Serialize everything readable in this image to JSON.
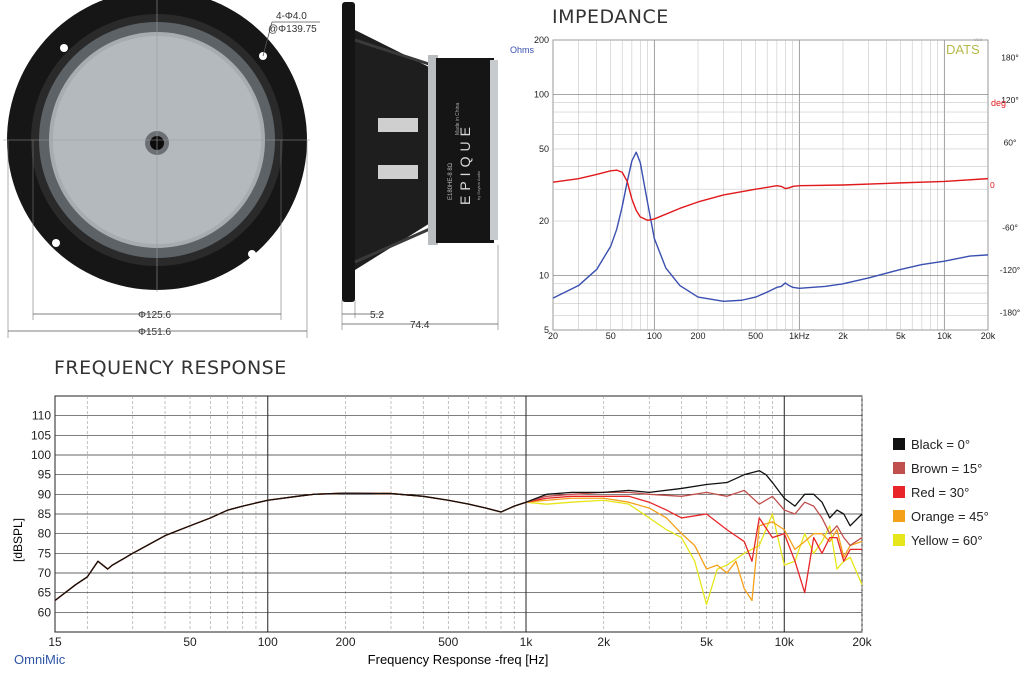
{
  "drawing": {
    "dim_holes": "4-Φ4.0",
    "dim_holes_pcd": "@Φ139.75",
    "dim_cutout": "Φ125.6",
    "dim_outer": "Φ151.6",
    "dim_flange": "5.2",
    "dim_depth": "74.4",
    "brand": "EPIQUE",
    "brand_sub": "by Dayton Audio",
    "model": "E180HE-8 8Ω",
    "made_in": "Made in China"
  },
  "impedance": {
    "title": "IMPEDANCE",
    "y_unit_label": "Ohms",
    "phase_unit_label": "deg",
    "watermark": "DATS",
    "watermark_version": "V3.0",
    "colors": {
      "impedance": "#3a4fb0",
      "phase": "#e0191c",
      "watermark": "#b6b84a",
      "phase_label": "#e0191c",
      "ohms_label": "#3a4fb0"
    }
  },
  "frequency_response": {
    "title": "FREQUENCY RESPONSE",
    "xlabel": "Frequency Response -freq [Hz]",
    "ylabel": "[dBSPL]",
    "watermark": "OmniMic",
    "legend": [
      {
        "label": "Black = 0°",
        "color": "#111111"
      },
      {
        "label": "Brown = 15°",
        "color": "#c0504d"
      },
      {
        "label": "Red = 30°",
        "color": "#e8262a"
      },
      {
        "label": "Orange = 45°",
        "color": "#f5a01a"
      },
      {
        "label": "Yellow = 60°",
        "color": "#e6e61a"
      }
    ],
    "colors": {
      "watermark": "#2e55a6"
    }
  },
  "chart_data": [
    {
      "type": "line",
      "title": "IMPEDANCE",
      "xscale": "log",
      "yscale": "log",
      "xlim": [
        20,
        20000
      ],
      "ylim": [
        5,
        200
      ],
      "x_ticks": [
        20,
        50,
        100,
        200,
        500,
        1000,
        2000,
        5000,
        10000,
        20000
      ],
      "x_tick_labels": [
        "20",
        "50",
        "100",
        "200",
        "500",
        "1kHz",
        "2k",
        "5k",
        "10k",
        "20k"
      ],
      "y_ticks": [
        5,
        10,
        20,
        50,
        100,
        200
      ],
      "y_tick_labels": [
        "5",
        "10",
        "20",
        "50",
        "100",
        "200"
      ],
      "y_label": "Ohms",
      "y2_ticks": [
        180,
        120,
        60,
        0,
        -60,
        -120,
        -180
      ],
      "y2_tick_labels": [
        "180°",
        "120°",
        "60°",
        "0 deg",
        "-60°",
        "-120°",
        "-180°"
      ],
      "grid": true,
      "series": [
        {
          "axis": "left",
          "x": [
            20,
            30,
            40,
            50,
            55,
            60,
            65,
            70,
            75,
            80,
            90,
            100,
            120,
            150,
            200,
            300,
            400,
            500,
            600,
            700,
            750,
            800,
            850,
            900,
            1000,
            1500,
            2000,
            3000,
            5000,
            7000,
            10000,
            15000,
            20000
          ],
          "values": [
            7.5,
            8.8,
            10.8,
            14.5,
            18,
            24,
            33,
            43,
            48,
            42,
            25,
            16,
            11,
            8.8,
            7.6,
            7.2,
            7.3,
            7.6,
            8.1,
            8.6,
            8.7,
            9.1,
            8.8,
            8.6,
            8.5,
            8.7,
            9.0,
            9.7,
            10.8,
            11.5,
            12.0,
            12.8,
            13.0
          ]
        },
        {
          "axis": "right",
          "x": [
            20,
            30,
            40,
            50,
            55,
            60,
            65,
            70,
            75,
            80,
            90,
            100,
            150,
            200,
            300,
            500,
            700,
            750,
            800,
            850,
            900,
            1000,
            2000,
            5000,
            10000,
            20000
          ],
          "values": [
            4,
            9,
            15,
            20,
            21,
            18,
            5,
            -20,
            -36,
            -45,
            -50,
            -48,
            -33,
            -24,
            -14,
            -6,
            -1,
            -2,
            -5,
            -4,
            -2,
            -1,
            0,
            3,
            5,
            9
          ]
        }
      ]
    },
    {
      "type": "line",
      "title": "FREQUENCY RESPONSE",
      "xlabel": "Frequency Response -freq [Hz]",
      "ylabel": "[dBSPL]",
      "xscale": "log",
      "xlim": [
        15,
        20000
      ],
      "ylim": [
        55,
        115
      ],
      "x_ticks": [
        15,
        50,
        100,
        200,
        500,
        1000,
        2000,
        5000,
        10000,
        20000
      ],
      "x_tick_labels": [
        "15",
        "50",
        "100",
        "200",
        "500",
        "1k",
        "2k",
        "5k",
        "10k",
        "20k"
      ],
      "y_ticks": [
        60,
        65,
        70,
        75,
        80,
        85,
        90,
        95,
        100,
        105,
        110
      ],
      "y_tick_labels": [
        "60",
        "65",
        "70",
        "75",
        "80",
        "85",
        "90",
        "95",
        "100",
        "105",
        "110"
      ],
      "grid": true,
      "legend_position": "right",
      "series": [
        {
          "name": "Black = 0°",
          "x": [
            15,
            18,
            20,
            22,
            24,
            25,
            30,
            40,
            50,
            60,
            70,
            80,
            100,
            130,
            150,
            200,
            300,
            400,
            500,
            600,
            700,
            800,
            900,
            1000,
            1200,
            1500,
            2000,
            2500,
            3000,
            4000,
            5000,
            6000,
            7000,
            8000,
            8500,
            9000,
            10000,
            11000,
            12000,
            13000,
            14000,
            15000,
            16000,
            17000,
            18000,
            20000
          ],
          "values": [
            63,
            67,
            69,
            73,
            71,
            72,
            75,
            79.5,
            82,
            84,
            86,
            87,
            88.5,
            89.5,
            90,
            90.3,
            90.2,
            89.5,
            88.5,
            87.5,
            86.5,
            85.5,
            87,
            88,
            90,
            90.5,
            90.5,
            91,
            90.5,
            91.5,
            92.5,
            93,
            95,
            96,
            95,
            93,
            89,
            87,
            90,
            90,
            88,
            84,
            86,
            85,
            82,
            85
          ]
        },
        {
          "name": "Brown = 15°",
          "x": [
            15,
            18,
            20,
            22,
            24,
            25,
            30,
            40,
            50,
            60,
            70,
            80,
            100,
            130,
            150,
            200,
            300,
            400,
            500,
            600,
            700,
            800,
            900,
            1000,
            1200,
            1500,
            2000,
            2500,
            3000,
            4000,
            5000,
            6000,
            7000,
            8000,
            9000,
            10000,
            11000,
            12000,
            13000,
            14000,
            15000,
            16000,
            17000,
            18000,
            20000
          ],
          "values": [
            63,
            67,
            69,
            73,
            71,
            72,
            75,
            79.5,
            82,
            84,
            86,
            87,
            88.5,
            89.5,
            90,
            90.3,
            90.2,
            89.5,
            88.5,
            87.5,
            86.5,
            85.5,
            87,
            88,
            89.5,
            90,
            90.5,
            90.5,
            90,
            89.5,
            90.5,
            89.5,
            91,
            87.5,
            89.5,
            86,
            85,
            88,
            87,
            84,
            80,
            82,
            79,
            77,
            79
          ]
        },
        {
          "name": "Red = 30°",
          "x": [
            15,
            18,
            20,
            22,
            24,
            25,
            30,
            40,
            50,
            60,
            70,
            80,
            100,
            130,
            150,
            200,
            300,
            400,
            500,
            600,
            700,
            800,
            900,
            1000,
            1200,
            1500,
            2000,
            2500,
            3000,
            3500,
            4000,
            5000,
            6000,
            7000,
            7500,
            8000,
            9000,
            10000,
            11000,
            12000,
            13000,
            14000,
            15000,
            16000,
            17000,
            18000,
            20000
          ],
          "values": [
            63,
            67,
            69,
            73,
            71,
            72,
            75,
            79.5,
            82,
            84,
            86,
            87,
            88.5,
            89.5,
            90,
            90.3,
            90.2,
            89.5,
            88.5,
            87.5,
            86.5,
            85.5,
            87,
            88,
            89,
            89.5,
            89.5,
            89.5,
            88,
            86,
            84,
            85,
            81,
            78,
            73,
            84,
            79,
            80,
            73,
            65,
            79,
            75,
            79,
            79,
            73,
            76,
            76
          ]
        },
        {
          "name": "Orange = 45°",
          "x": [
            15,
            18,
            20,
            22,
            24,
            25,
            30,
            40,
            50,
            60,
            70,
            80,
            100,
            130,
            150,
            200,
            300,
            400,
            500,
            600,
            700,
            800,
            900,
            1000,
            1200,
            1500,
            2000,
            2500,
            3000,
            3500,
            4000,
            4500,
            5000,
            5500,
            6000,
            6500,
            7000,
            7500,
            8000,
            9000,
            10000,
            11000,
            12000,
            13000,
            14000,
            15000,
            16000,
            17000,
            18000,
            20000
          ],
          "values": [
            63,
            67,
            69,
            73,
            71,
            72,
            75,
            79.5,
            82,
            84,
            86,
            87,
            88.5,
            89.5,
            90,
            90.3,
            90.2,
            89.5,
            88.5,
            87.5,
            86.5,
            85.5,
            87,
            88,
            88.5,
            89,
            89,
            88,
            86.5,
            84,
            80,
            77,
            71,
            72,
            70,
            73,
            66,
            63,
            82,
            83,
            81,
            76,
            78,
            80,
            80,
            78,
            81,
            74,
            77,
            78
          ]
        },
        {
          "name": "Yellow = 60°",
          "x": [
            15,
            18,
            20,
            22,
            24,
            25,
            30,
            40,
            50,
            60,
            70,
            80,
            100,
            130,
            150,
            200,
            300,
            400,
            500,
            600,
            700,
            800,
            900,
            1000,
            1200,
            1500,
            2000,
            2500,
            3000,
            3500,
            4000,
            4500,
            5000,
            5500,
            6000,
            7000,
            8000,
            9000,
            10000,
            11000,
            12000,
            13000,
            14000,
            15000,
            16000,
            17000,
            18000,
            20000
          ],
          "values": [
            63,
            67,
            69,
            73,
            71,
            72,
            75,
            79.5,
            82,
            84,
            86,
            87,
            88.5,
            89.5,
            90,
            90.3,
            90.2,
            89.5,
            88.5,
            87.5,
            86.5,
            85.5,
            87,
            88,
            87.5,
            88,
            88.5,
            87.5,
            84,
            81,
            79,
            73,
            62,
            71,
            72,
            75,
            77,
            85,
            72,
            73,
            80,
            75,
            78,
            82,
            71,
            73,
            74,
            67
          ]
        }
      ]
    }
  ]
}
